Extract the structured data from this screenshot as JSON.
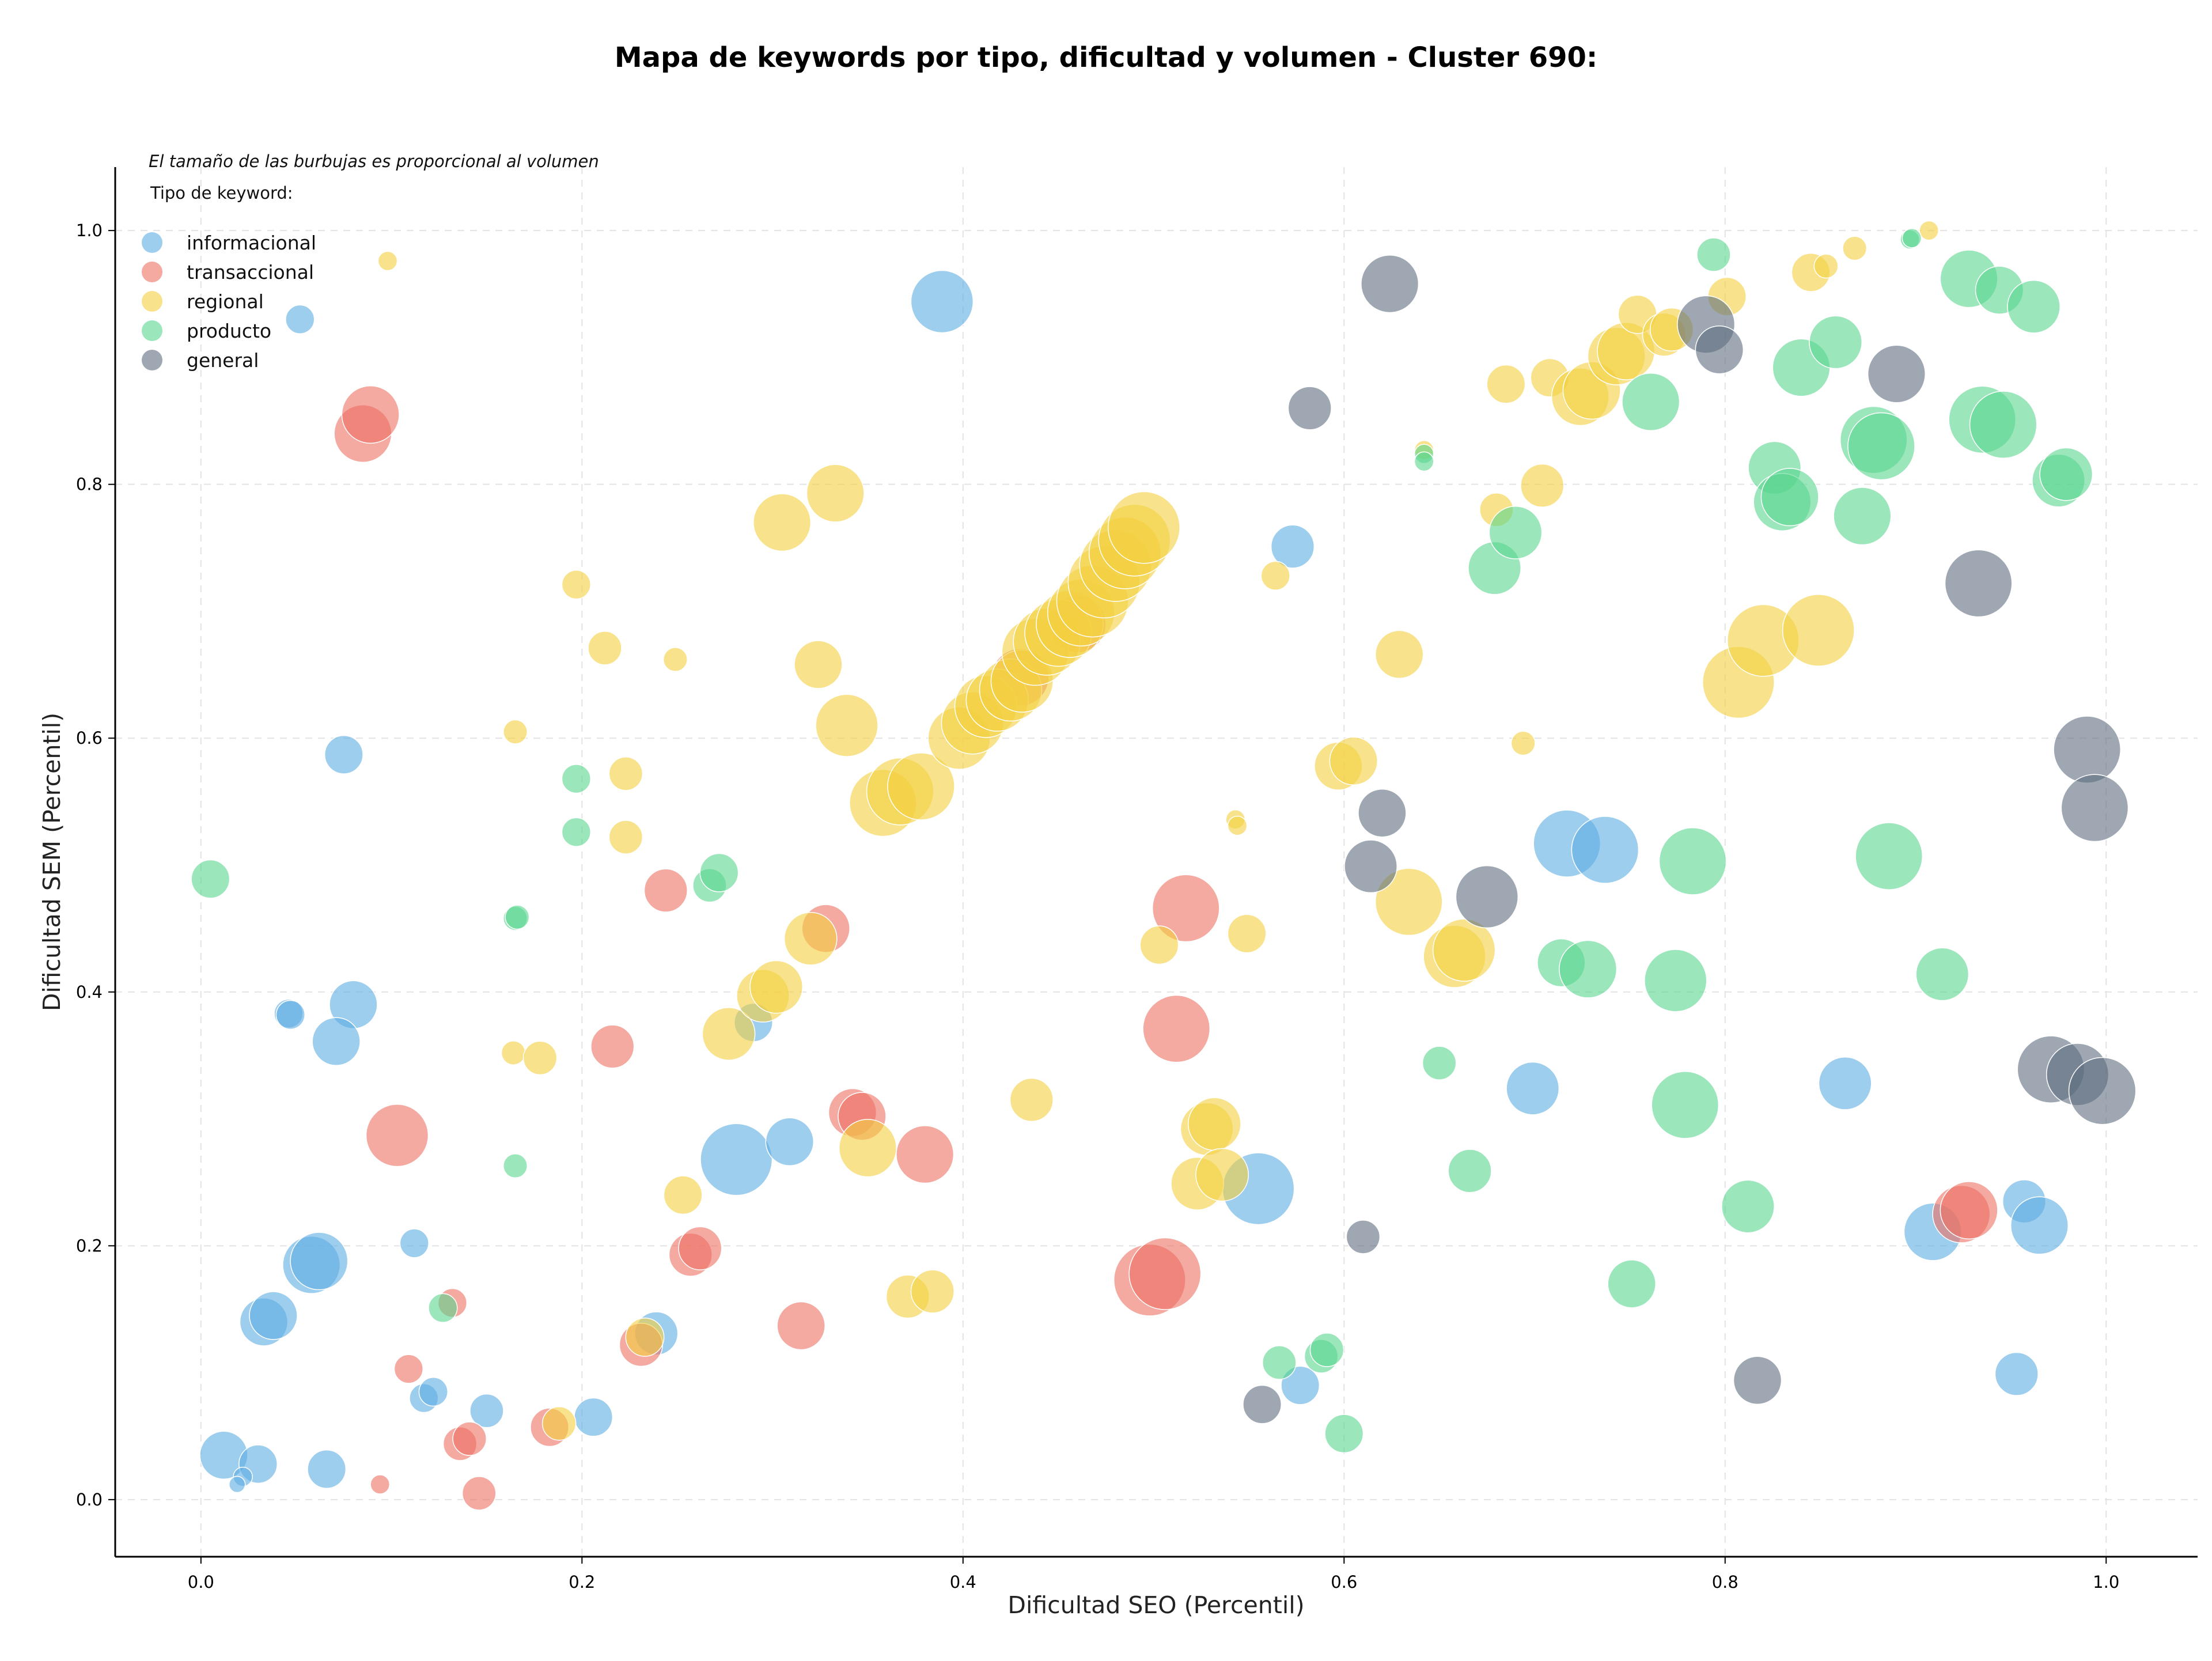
{
  "chart_data": {
    "type": "scatter",
    "title": "Mapa de keywords por tipo, dificultad y volumen - Cluster 690:",
    "xlabel": "Dificultad SEO (Percentil)",
    "ylabel": "Dificultad SEM (Percentil)",
    "xlim": [
      -0.045,
      1.048
    ],
    "ylim": [
      -0.045,
      1.05
    ],
    "x_ticks": [
      "0.0",
      "0.2",
      "0.4",
      "0.6",
      "0.8",
      "1.0"
    ],
    "y_ticks": [
      "0.0",
      "0.2",
      "0.4",
      "0.6",
      "0.8",
      "1.0"
    ],
    "grid": true,
    "annotation": "El tamaño de las burbujas es proporcional al volumen",
    "legend_title": "Tipo de keyword:",
    "legend_position": "top-left",
    "series": [
      {
        "name": "informacional",
        "color": "#5dade2",
        "points": [
          [
            0.012,
            0.035,
            0.05
          ],
          [
            0.03,
            0.028,
            0.04
          ],
          [
            0.022,
            0.018,
            0.02
          ],
          [
            0.019,
            0.012,
            0.015
          ],
          [
            0.066,
            0.024,
            0.04
          ],
          [
            0.033,
            0.14,
            0.05
          ],
          [
            0.038,
            0.145,
            0.05
          ],
          [
            0.058,
            0.185,
            0.06
          ],
          [
            0.062,
            0.188,
            0.06
          ],
          [
            0.046,
            0.383,
            0.03
          ],
          [
            0.047,
            0.382,
            0.03
          ],
          [
            0.08,
            0.39,
            0.05
          ],
          [
            0.071,
            0.361,
            0.05
          ],
          [
            0.075,
            0.587,
            0.04
          ],
          [
            0.052,
            0.93,
            0.03
          ],
          [
            0.112,
            0.202,
            0.03
          ],
          [
            0.117,
            0.08,
            0.03
          ],
          [
            0.122,
            0.085,
            0.03
          ],
          [
            0.15,
            0.07,
            0.035
          ],
          [
            0.206,
            0.065,
            0.04
          ],
          [
            0.239,
            0.131,
            0.045
          ],
          [
            0.281,
            0.268,
            0.075
          ],
          [
            0.309,
            0.282,
            0.05
          ],
          [
            0.29,
            0.376,
            0.04
          ],
          [
            0.389,
            0.944,
            0.065
          ],
          [
            0.555,
            0.245,
            0.075
          ],
          [
            0.573,
            0.751,
            0.045
          ],
          [
            0.577,
            0.09,
            0.04
          ],
          [
            0.699,
            0.324,
            0.055
          ],
          [
            0.717,
            0.517,
            0.07
          ],
          [
            0.737,
            0.512,
            0.07
          ],
          [
            0.863,
            0.328,
            0.055
          ],
          [
            0.909,
            0.211,
            0.06
          ],
          [
            0.957,
            0.235,
            0.045
          ],
          [
            0.965,
            0.216,
            0.06
          ],
          [
            0.953,
            0.099,
            0.045
          ]
        ]
      },
      {
        "name": "transaccional",
        "color": "#ec7063",
        "points": [
          [
            0.085,
            0.84,
            0.06
          ],
          [
            0.089,
            0.855,
            0.06
          ],
          [
            0.103,
            0.287,
            0.065
          ],
          [
            0.094,
            0.012,
            0.02
          ],
          [
            0.109,
            0.103,
            0.03
          ],
          [
            0.132,
            0.155,
            0.03
          ],
          [
            0.136,
            0.044,
            0.035
          ],
          [
            0.141,
            0.048,
            0.035
          ],
          [
            0.146,
            0.005,
            0.035
          ],
          [
            0.183,
            0.057,
            0.04
          ],
          [
            0.216,
            0.357,
            0.045
          ],
          [
            0.231,
            0.122,
            0.045
          ],
          [
            0.244,
            0.48,
            0.045
          ],
          [
            0.257,
            0.193,
            0.045
          ],
          [
            0.262,
            0.198,
            0.045
          ],
          [
            0.315,
            0.137,
            0.05
          ],
          [
            0.328,
            0.45,
            0.05
          ],
          [
            0.342,
            0.305,
            0.05
          ],
          [
            0.347,
            0.302,
            0.05
          ],
          [
            0.38,
            0.272,
            0.06
          ],
          [
            0.43,
            0.648,
            0.06
          ],
          [
            0.46,
            0.69,
            0.06
          ],
          [
            0.498,
            0.173,
            0.075
          ],
          [
            0.506,
            0.178,
            0.075
          ],
          [
            0.512,
            0.371,
            0.07
          ],
          [
            0.517,
            0.466,
            0.07
          ],
          [
            0.924,
            0.225,
            0.06
          ],
          [
            0.928,
            0.228,
            0.06
          ]
        ]
      },
      {
        "name": "regional",
        "color": "#f4d03f",
        "points": [
          [
            0.098,
            0.976,
            0.02
          ],
          [
            0.164,
            0.352,
            0.025
          ],
          [
            0.165,
            0.605,
            0.025
          ],
          [
            0.178,
            0.348,
            0.035
          ],
          [
            0.188,
            0.06,
            0.035
          ],
          [
            0.197,
            0.721,
            0.03
          ],
          [
            0.212,
            0.671,
            0.035
          ],
          [
            0.223,
            0.572,
            0.035
          ],
          [
            0.223,
            0.522,
            0.035
          ],
          [
            0.233,
            0.128,
            0.04
          ],
          [
            0.249,
            0.662,
            0.025
          ],
          [
            0.253,
            0.24,
            0.04
          ],
          [
            0.277,
            0.367,
            0.055
          ],
          [
            0.295,
            0.397,
            0.055
          ],
          [
            0.302,
            0.404,
            0.055
          ],
          [
            0.305,
            0.77,
            0.06
          ],
          [
            0.32,
            0.442,
            0.055
          ],
          [
            0.324,
            0.658,
            0.05
          ],
          [
            0.333,
            0.793,
            0.06
          ],
          [
            0.339,
            0.61,
            0.065
          ],
          [
            0.35,
            0.277,
            0.06
          ],
          [
            0.358,
            0.549,
            0.07
          ],
          [
            0.367,
            0.558,
            0.07
          ],
          [
            0.378,
            0.562,
            0.07
          ],
          [
            0.371,
            0.16,
            0.045
          ],
          [
            0.384,
            0.164,
            0.045
          ],
          [
            0.398,
            0.6,
            0.065
          ],
          [
            0.405,
            0.612,
            0.065
          ],
          [
            0.412,
            0.625,
            0.065
          ],
          [
            0.418,
            0.63,
            0.065
          ],
          [
            0.425,
            0.638,
            0.065
          ],
          [
            0.431,
            0.645,
            0.065
          ],
          [
            0.438,
            0.668,
            0.07
          ],
          [
            0.444,
            0.676,
            0.07
          ],
          [
            0.45,
            0.683,
            0.07
          ],
          [
            0.456,
            0.69,
            0.07
          ],
          [
            0.462,
            0.699,
            0.07
          ],
          [
            0.468,
            0.708,
            0.075
          ],
          [
            0.474,
            0.723,
            0.075
          ],
          [
            0.48,
            0.736,
            0.075
          ],
          [
            0.485,
            0.746,
            0.075
          ],
          [
            0.49,
            0.756,
            0.075
          ],
          [
            0.495,
            0.766,
            0.075
          ],
          [
            0.436,
            0.315,
            0.045
          ],
          [
            0.503,
            0.437,
            0.04
          ],
          [
            0.523,
            0.249,
            0.055
          ],
          [
            0.528,
            0.292,
            0.055
          ],
          [
            0.532,
            0.296,
            0.055
          ],
          [
            0.536,
            0.256,
            0.055
          ],
          [
            0.543,
            0.536,
            0.02
          ],
          [
            0.544,
            0.531,
            0.02
          ],
          [
            0.549,
            0.446,
            0.04
          ],
          [
            0.564,
            0.728,
            0.03
          ],
          [
            0.597,
            0.578,
            0.05
          ],
          [
            0.605,
            0.582,
            0.05
          ],
          [
            0.629,
            0.666,
            0.05
          ],
          [
            0.634,
            0.471,
            0.07
          ],
          [
            0.658,
            0.428,
            0.065
          ],
          [
            0.663,
            0.433,
            0.065
          ],
          [
            0.68,
            0.78,
            0.035
          ],
          [
            0.685,
            0.879,
            0.04
          ],
          [
            0.694,
            0.596,
            0.025
          ],
          [
            0.704,
            0.799,
            0.045
          ],
          [
            0.708,
            0.884,
            0.04
          ],
          [
            0.724,
            0.869,
            0.06
          ],
          [
            0.73,
            0.874,
            0.06
          ],
          [
            0.743,
            0.901,
            0.06
          ],
          [
            0.748,
            0.905,
            0.06
          ],
          [
            0.754,
            0.934,
            0.04
          ],
          [
            0.768,
            0.918,
            0.045
          ],
          [
            0.772,
            0.922,
            0.045
          ],
          [
            0.801,
            0.948,
            0.04
          ],
          [
            0.807,
            0.644,
            0.075
          ],
          [
            0.82,
            0.677,
            0.075
          ],
          [
            0.845,
            0.967,
            0.04
          ],
          [
            0.849,
            0.685,
            0.075
          ],
          [
            0.853,
            0.972,
            0.025
          ],
          [
            0.868,
            0.986,
            0.025
          ],
          [
            0.642,
            0.827,
            0.02
          ],
          [
            0.907,
            1.0,
            0.02
          ]
        ]
      },
      {
        "name": "producto",
        "color": "#58d68d",
        "points": [
          [
            0.005,
            0.489,
            0.04
          ],
          [
            0.165,
            0.458,
            0.025
          ],
          [
            0.166,
            0.459,
            0.025
          ],
          [
            0.165,
            0.263,
            0.025
          ],
          [
            0.197,
            0.568,
            0.03
          ],
          [
            0.197,
            0.526,
            0.03
          ],
          [
            0.127,
            0.151,
            0.03
          ],
          [
            0.267,
            0.484,
            0.035
          ],
          [
            0.272,
            0.494,
            0.04
          ],
          [
            0.566,
            0.108,
            0.035
          ],
          [
            0.588,
            0.113,
            0.035
          ],
          [
            0.591,
            0.118,
            0.035
          ],
          [
            0.6,
            0.052,
            0.04
          ],
          [
            0.642,
            0.824,
            0.02
          ],
          [
            0.642,
            0.818,
            0.02
          ],
          [
            0.65,
            0.344,
            0.035
          ],
          [
            0.666,
            0.259,
            0.045
          ],
          [
            0.679,
            0.734,
            0.055
          ],
          [
            0.69,
            0.762,
            0.055
          ],
          [
            0.714,
            0.423,
            0.05
          ],
          [
            0.728,
            0.418,
            0.06
          ],
          [
            0.751,
            0.17,
            0.05
          ],
          [
            0.761,
            0.865,
            0.06
          ],
          [
            0.774,
            0.409,
            0.065
          ],
          [
            0.779,
            0.311,
            0.07
          ],
          [
            0.783,
            0.503,
            0.07
          ],
          [
            0.794,
            0.981,
            0.035
          ],
          [
            0.812,
            0.231,
            0.055
          ],
          [
            0.826,
            0.813,
            0.055
          ],
          [
            0.83,
            0.786,
            0.06
          ],
          [
            0.834,
            0.79,
            0.06
          ],
          [
            0.84,
            0.892,
            0.06
          ],
          [
            0.858,
            0.912,
            0.055
          ],
          [
            0.872,
            0.775,
            0.06
          ],
          [
            0.878,
            0.835,
            0.07
          ],
          [
            0.882,
            0.83,
            0.07
          ],
          [
            0.886,
            0.507,
            0.07
          ],
          [
            0.897,
            0.993,
            0.02
          ],
          [
            0.898,
            0.994,
            0.02
          ],
          [
            0.914,
            0.414,
            0.055
          ],
          [
            0.928,
            0.962,
            0.06
          ],
          [
            0.935,
            0.851,
            0.07
          ],
          [
            0.944,
            0.953,
            0.05
          ],
          [
            0.946,
            0.847,
            0.07
          ],
          [
            0.962,
            0.94,
            0.055
          ],
          [
            0.975,
            0.803,
            0.055
          ],
          [
            0.979,
            0.808,
            0.055
          ]
        ]
      },
      {
        "name": "general",
        "color": "#5d6d7e",
        "points": [
          [
            0.557,
            0.075,
            0.04
          ],
          [
            0.582,
            0.86,
            0.045
          ],
          [
            0.61,
            0.207,
            0.035
          ],
          [
            0.62,
            0.541,
            0.05
          ],
          [
            0.614,
            0.499,
            0.055
          ],
          [
            0.624,
            0.958,
            0.06
          ],
          [
            0.675,
            0.475,
            0.065
          ],
          [
            0.79,
            0.926,
            0.06
          ],
          [
            0.797,
            0.906,
            0.05
          ],
          [
            0.817,
            0.094,
            0.05
          ],
          [
            0.89,
            0.887,
            0.06
          ],
          [
            0.933,
            0.722,
            0.07
          ],
          [
            0.971,
            0.339,
            0.07
          ],
          [
            0.985,
            0.335,
            0.065
          ],
          [
            0.99,
            0.591,
            0.07
          ],
          [
            0.994,
            0.545,
            0.07
          ],
          [
            0.998,
            0.322,
            0.07
          ]
        ]
      }
    ]
  }
}
